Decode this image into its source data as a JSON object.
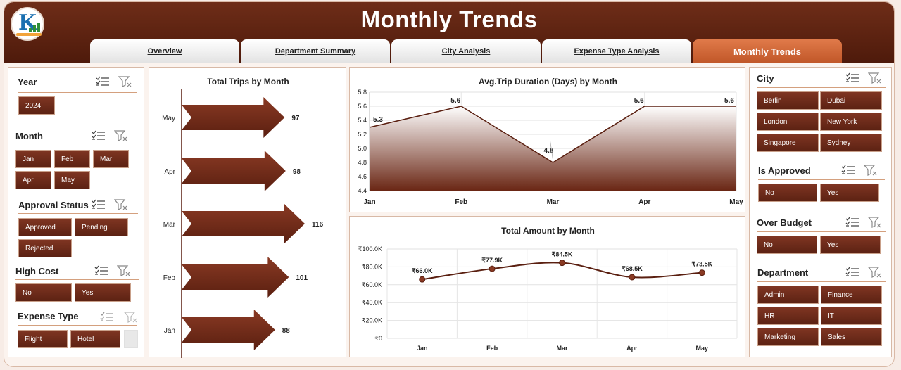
{
  "header": {
    "title": "Monthly Trends"
  },
  "tabs": [
    {
      "label": "Overview"
    },
    {
      "label": "Department Summary"
    },
    {
      "label": "City Analysis"
    },
    {
      "label": "Expense Type Analysis"
    },
    {
      "label": "Monthly Trends",
      "active": true
    }
  ],
  "colors": {
    "accent": "#5c2213",
    "header": "#5a200e",
    "active_tab": "#d5683a"
  },
  "left_slicers": {
    "year": {
      "title": "Year",
      "options": [
        "2024"
      ]
    },
    "month": {
      "title": "Month",
      "options": [
        "Jan",
        "Feb",
        "Mar",
        "Apr",
        "May"
      ]
    },
    "approval": {
      "title": "Approval Status",
      "options": [
        "Approved",
        "Pending",
        "Rejected"
      ]
    },
    "high_cost": {
      "title": "High Cost",
      "options": [
        "No",
        "Yes"
      ]
    },
    "expense_type": {
      "title": "Expense Type",
      "options": [
        "Flight",
        "Hotel"
      ]
    }
  },
  "right_slicers": {
    "city": {
      "title": "City",
      "options": [
        "Berlin",
        "Dubai",
        "London",
        "New York",
        "Singapore",
        "Sydney"
      ]
    },
    "is_approved": {
      "title": "Is Approved",
      "options": [
        "No",
        "Yes"
      ]
    },
    "over_budget": {
      "title": "Over Budget",
      "options": [
        "No",
        "Yes"
      ]
    },
    "department": {
      "title": "Department",
      "options": [
        "Admin",
        "Finance",
        "HR",
        "IT",
        "Marketing",
        "Sales"
      ]
    }
  },
  "chart_data": [
    {
      "type": "bar",
      "orientation": "horizontal",
      "title": "Total Trips by Month",
      "categories": [
        "May",
        "Apr",
        "Mar",
        "Feb",
        "Jan"
      ],
      "values": [
        97,
        98,
        116,
        101,
        88
      ],
      "labels": [
        "97",
        "98",
        "116",
        "101",
        "88"
      ]
    },
    {
      "type": "area",
      "title": "Avg.Trip Duration (Days) by Month",
      "categories": [
        "Jan",
        "Feb",
        "Mar",
        "Apr",
        "May"
      ],
      "values": [
        5.3,
        5.6,
        4.8,
        5.6,
        5.6
      ],
      "labels": [
        "5.3",
        "5.6",
        "4.8",
        "5.6",
        "5.6"
      ],
      "ylim": [
        4.4,
        5.8
      ],
      "yticks": [
        "5.8",
        "5.6",
        "5.4",
        "5.2",
        "5.0",
        "4.8",
        "4.6",
        "4.4"
      ],
      "grid": true
    },
    {
      "type": "line",
      "title": "Total Amount by Month",
      "categories": [
        "Jan",
        "Feb",
        "Mar",
        "Apr",
        "May"
      ],
      "values": [
        66000,
        77900,
        84500,
        68500,
        73500
      ],
      "labels": [
        "₹66.0K",
        "₹77.9K",
        "₹84.5K",
        "₹68.5K",
        "₹73.5K"
      ],
      "ylim": [
        0,
        100000
      ],
      "yticks": [
        "₹100.0K",
        "₹80.0K",
        "₹60.0K",
        "₹40.0K",
        "₹20.0K",
        "₹0"
      ],
      "grid": true
    }
  ]
}
